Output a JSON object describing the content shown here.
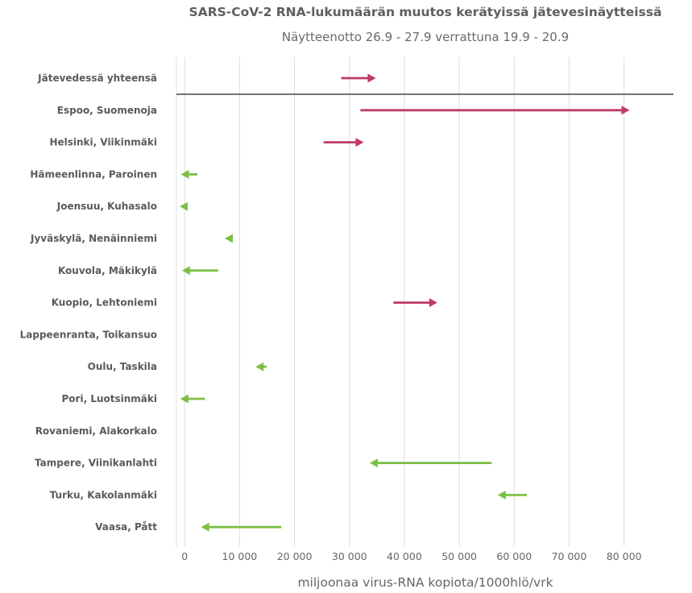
{
  "chart_data": {
    "type": "arrow-dot",
    "title": "SARS-CoV-2 RNA-lukumäärän muutos kerätyissä jätevesinäytteissä",
    "subtitle": "Näytteenotto 26.9 - 27.9 verrattuna 19.9 - 20.9",
    "xlabel": "miljoonaa virus-RNA kopiota/1000hlö/vrk",
    "xlim": [
      -1500,
      89000
    ],
    "xticks": [
      0,
      10000,
      20000,
      30000,
      40000,
      50000,
      60000,
      70000,
      80000
    ],
    "xtick_labels": [
      "0",
      "10 000",
      "20 000",
      "30 000",
      "40 000",
      "50 000",
      "60 000",
      "70 000",
      "80 000"
    ],
    "grid": "vertical",
    "colors": {
      "increase": "#c0396b",
      "decrease": "#7dbf45"
    },
    "series": [
      {
        "name": "Jätevedessä yhteensä",
        "from": 28500,
        "to": 34800
      },
      {
        "name": "Espoo, Suomenoja",
        "from": 32000,
        "to": 81000
      },
      {
        "name": "Helsinki, Viikinmäki",
        "from": 25300,
        "to": 32600
      },
      {
        "name": "Hämeenlinna, Paroinen",
        "from": 2300,
        "to": -700
      },
      {
        "name": "Joensuu, Kuhasalo",
        "from": 200,
        "to": -900
      },
      {
        "name": "Jyväskylä, Nenäinniemi",
        "from": 8400,
        "to": 7300
      },
      {
        "name": "Kouvola, Mäkikylä",
        "from": 6100,
        "to": -500
      },
      {
        "name": "Kuopio, Lehtoniemi",
        "from": 38000,
        "to": 46000
      },
      {
        "name": "Lappeenranta, Toikansuo",
        "from": null,
        "to": null
      },
      {
        "name": "Oulu, Taskila",
        "from": 14900,
        "to": 12900
      },
      {
        "name": "Pori, Luotsinmäki",
        "from": 3700,
        "to": -800
      },
      {
        "name": "Rovaniemi, Alakorkalo",
        "from": null,
        "to": null
      },
      {
        "name": "Tampere, Viinikanlahti",
        "from": 55900,
        "to": 33700
      },
      {
        "name": "Turku, Kakolanmäki",
        "from": 62300,
        "to": 57000
      },
      {
        "name": "Vaasa, Pått",
        "from": 17600,
        "to": 3000
      }
    ]
  }
}
